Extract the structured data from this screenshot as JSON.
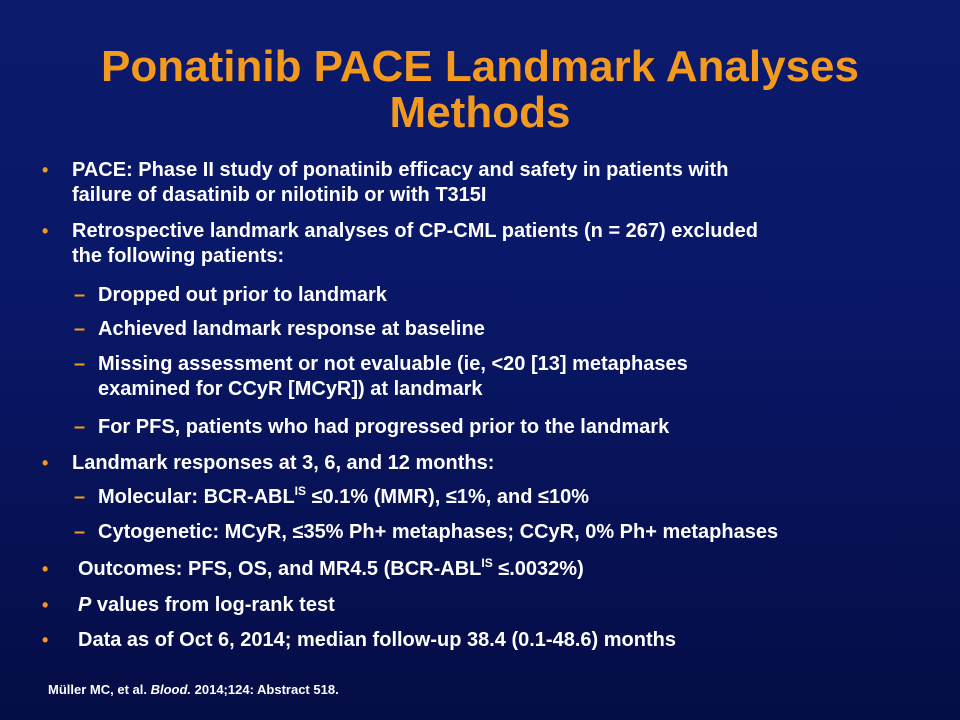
{
  "slide": {
    "title_line1": "Ponatinib PACE Landmark Analyses",
    "title_line2": "Methods",
    "bullet_char": "•",
    "dash_char": "–",
    "b1": {
      "line1": "PACE: Phase II study of ponatinib efficacy and safety in patients with",
      "line2": "failure of dasatinib or nilotinib or with T315I"
    },
    "b2": {
      "line1": "Retrospective landmark analyses of CP-CML patients (n = 267) excluded",
      "line2": "the following patients:"
    },
    "b2_sub": {
      "s1": "Dropped out prior to landmark",
      "s2": "Achieved landmark response at baseline",
      "s3_line1": "Missing assessment or not evaluable (ie, <20 [13] metaphases",
      "s3_line2": "examined for CCyR [MCyR]) at landmark",
      "s4": "For PFS, patients who had progressed prior to the landmark"
    },
    "b3": "Landmark responses at 3, 6, and 12 months:",
    "b3_sub": {
      "s1_pre": "Molecular: BCR-ABL",
      "s1_sup": "IS",
      "s1_post": " ≤0.1% (MMR), ≤1%, and ≤10%",
      "s2": "Cytogenetic: MCyR, ≤35% Ph+ metaphases; CCyR, 0% Ph+ metaphases"
    },
    "b4": {
      "pre": "Outcomes: PFS, OS, and MR4.5 (BCR-ABL",
      "sup": "IS",
      "post": " ≤.0032%)"
    },
    "b5": {
      "ital": "P",
      "rest": " values from log-rank test"
    },
    "b6": "Data as of Oct 6, 2014; median follow-up 38.4 (0.1-48.6) months",
    "footer": {
      "pre": "Müller MC, et al. ",
      "journal": "Blood.",
      "post": " 2014;124: Abstract 518."
    }
  },
  "colors": {
    "background": "#0a186a",
    "title": "#f39a1e",
    "bullet": "#f39a1e",
    "text": "#ffffff"
  }
}
